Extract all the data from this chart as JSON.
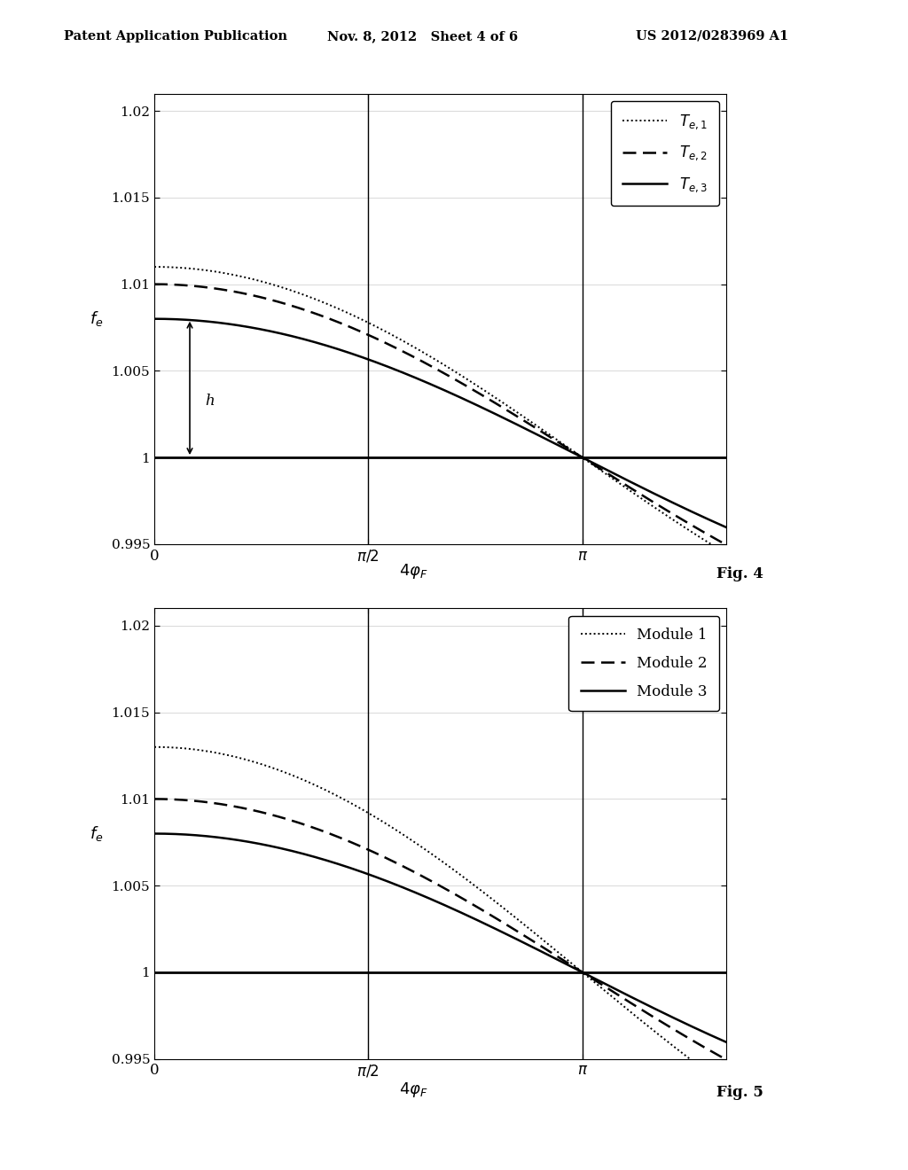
{
  "header_left": "Patent Application Publication",
  "header_mid": "Nov. 8, 2012   Sheet 4 of 6",
  "header_right": "US 2012/0283969 A1",
  "fig4_title": "Fig. 4",
  "fig5_title": "Fig. 5",
  "ylim": [
    0.995,
    1.021
  ],
  "yticks": [
    0.995,
    1.0,
    1.005,
    1.01,
    1.015,
    1.02
  ],
  "ytick_labels": [
    "0.995",
    "1",
    "1.005",
    "1.01",
    "1.015",
    "1.02"
  ],
  "pi_half": 1.5707963267948966,
  "pi_val": 3.141592653589793,
  "xmax": 4.2,
  "fig4_starts": [
    1.011,
    1.01,
    1.008
  ],
  "fig5_starts": [
    1.013,
    1.01,
    1.008
  ],
  "fig4_legend": [
    "$T_{e,1}$",
    "$T_{e,2}$",
    "$T_{e,3}$"
  ],
  "fig5_legend": [
    "Module 1",
    "Module 2",
    "Module 3"
  ],
  "background_color": "#ffffff"
}
